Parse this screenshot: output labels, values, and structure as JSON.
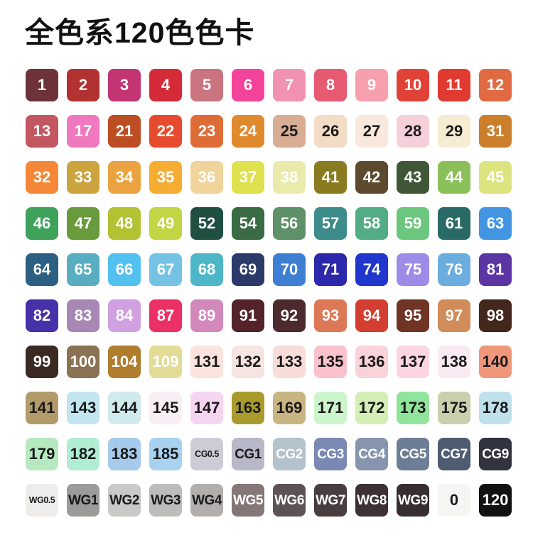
{
  "title": "全色系120色色卡",
  "grid": {
    "columns": 12,
    "rows": 10,
    "swatch_count": 120,
    "text_colors": {
      "light": "#ffffff",
      "dark": "#1a1a1a"
    },
    "swatches": [
      {
        "label": "1",
        "bg": "#6e3338",
        "fg": "#ffffff"
      },
      {
        "label": "2",
        "bg": "#b13231",
        "fg": "#ffffff"
      },
      {
        "label": "3",
        "bg": "#c23472",
        "fg": "#ffffff"
      },
      {
        "label": "4",
        "bg": "#d52a38",
        "fg": "#ffffff"
      },
      {
        "label": "5",
        "bg": "#c9747e",
        "fg": "#ffffff"
      },
      {
        "label": "6",
        "bg": "#f4439b",
        "fg": "#ffffff"
      },
      {
        "label": "7",
        "bg": "#f292b2",
        "fg": "#ffffff"
      },
      {
        "label": "8",
        "bg": "#e75b72",
        "fg": "#ffffff"
      },
      {
        "label": "9",
        "bg": "#f89fae",
        "fg": "#ffffff"
      },
      {
        "label": "10",
        "bg": "#e04238",
        "fg": "#ffffff"
      },
      {
        "label": "11",
        "bg": "#e03a31",
        "fg": "#ffffff"
      },
      {
        "label": "12",
        "bg": "#e16a42",
        "fg": "#ffffff"
      },
      {
        "label": "13",
        "bg": "#c25661",
        "fg": "#ffffff"
      },
      {
        "label": "17",
        "bg": "#f078be",
        "fg": "#ffffff"
      },
      {
        "label": "21",
        "bg": "#bd4d23",
        "fg": "#ffffff"
      },
      {
        "label": "22",
        "bg": "#e74b2f",
        "fg": "#ffffff"
      },
      {
        "label": "23",
        "bg": "#dd6c36",
        "fg": "#ffffff"
      },
      {
        "label": "24",
        "bg": "#e08a2e",
        "fg": "#ffffff"
      },
      {
        "label": "25",
        "bg": "#d9ac94",
        "fg": "#1a1a1a"
      },
      {
        "label": "26",
        "bg": "#f3dcc5",
        "fg": "#1a1a1a"
      },
      {
        "label": "27",
        "bg": "#f9e8dc",
        "fg": "#1a1a1a"
      },
      {
        "label": "28",
        "bg": "#f6d0d9",
        "fg": "#1a1a1a"
      },
      {
        "label": "29",
        "bg": "#f5ecd2",
        "fg": "#1a1a1a"
      },
      {
        "label": "31",
        "bg": "#cb7f2b",
        "fg": "#ffffff"
      },
      {
        "label": "32",
        "bg": "#f58838",
        "fg": "#ffffff"
      },
      {
        "label": "33",
        "bg": "#cba43f",
        "fg": "#ffffff"
      },
      {
        "label": "34",
        "bg": "#eba342",
        "fg": "#ffffff"
      },
      {
        "label": "35",
        "bg": "#f5ae33",
        "fg": "#ffffff"
      },
      {
        "label": "36",
        "bg": "#f0d49b",
        "fg": "#ffffff"
      },
      {
        "label": "37",
        "bg": "#dfe14e",
        "fg": "#ffffff"
      },
      {
        "label": "38",
        "bg": "#eaeaad",
        "fg": "#ffffff"
      },
      {
        "label": "41",
        "bg": "#897b20",
        "fg": "#ffffff"
      },
      {
        "label": "42",
        "bg": "#5d4a2e",
        "fg": "#ffffff"
      },
      {
        "label": "43",
        "bg": "#3f5737",
        "fg": "#ffffff"
      },
      {
        "label": "44",
        "bg": "#8bbf5a",
        "fg": "#ffffff"
      },
      {
        "label": "45",
        "bg": "#dde47f",
        "fg": "#ffffff"
      },
      {
        "label": "46",
        "bg": "#3ea25a",
        "fg": "#ffffff"
      },
      {
        "label": "47",
        "bg": "#699a3c",
        "fg": "#ffffff"
      },
      {
        "label": "48",
        "bg": "#b2c233",
        "fg": "#ffffff"
      },
      {
        "label": "49",
        "bg": "#c1d545",
        "fg": "#ffffff"
      },
      {
        "label": "52",
        "bg": "#1e4f40",
        "fg": "#ffffff"
      },
      {
        "label": "54",
        "bg": "#3a6b44",
        "fg": "#ffffff"
      },
      {
        "label": "56",
        "bg": "#5e9168",
        "fg": "#ffffff"
      },
      {
        "label": "57",
        "bg": "#3d8b8a",
        "fg": "#ffffff"
      },
      {
        "label": "58",
        "bg": "#52ac86",
        "fg": "#ffffff"
      },
      {
        "label": "59",
        "bg": "#6cc77e",
        "fg": "#ffffff"
      },
      {
        "label": "61",
        "bg": "#2a6a66",
        "fg": "#ffffff"
      },
      {
        "label": "63",
        "bg": "#4295e1",
        "fg": "#ffffff"
      },
      {
        "label": "64",
        "bg": "#2c5f82",
        "fg": "#ffffff"
      },
      {
        "label": "65",
        "bg": "#58aec0",
        "fg": "#ffffff"
      },
      {
        "label": "66",
        "bg": "#53c1ef",
        "fg": "#ffffff"
      },
      {
        "label": "67",
        "bg": "#75c3e4",
        "fg": "#ffffff"
      },
      {
        "label": "68",
        "bg": "#4db7c8",
        "fg": "#ffffff"
      },
      {
        "label": "69",
        "bg": "#2c3a6a",
        "fg": "#ffffff"
      },
      {
        "label": "70",
        "bg": "#3e7fd3",
        "fg": "#ffffff"
      },
      {
        "label": "71",
        "bg": "#2b28ab",
        "fg": "#ffffff"
      },
      {
        "label": "74",
        "bg": "#2036cc",
        "fg": "#ffffff"
      },
      {
        "label": "75",
        "bg": "#9c8ce8",
        "fg": "#ffffff"
      },
      {
        "label": "76",
        "bg": "#6caddf",
        "fg": "#ffffff"
      },
      {
        "label": "81",
        "bg": "#5c35a5",
        "fg": "#ffffff"
      },
      {
        "label": "82",
        "bg": "#4631a8",
        "fg": "#ffffff"
      },
      {
        "label": "83",
        "bg": "#a788b5",
        "fg": "#ffffff"
      },
      {
        "label": "84",
        "bg": "#d1a0e0",
        "fg": "#ffffff"
      },
      {
        "label": "87",
        "bg": "#eb3066",
        "fg": "#ffffff"
      },
      {
        "label": "89",
        "bg": "#d288bb",
        "fg": "#ffffff"
      },
      {
        "label": "91",
        "bg": "#532329",
        "fg": "#ffffff"
      },
      {
        "label": "92",
        "bg": "#4c2a2d",
        "fg": "#ffffff"
      },
      {
        "label": "93",
        "bg": "#dd7857",
        "fg": "#ffffff"
      },
      {
        "label": "94",
        "bg": "#d43e30",
        "fg": "#ffffff"
      },
      {
        "label": "95",
        "bg": "#703425",
        "fg": "#ffffff"
      },
      {
        "label": "97",
        "bg": "#d08c59",
        "fg": "#ffffff"
      },
      {
        "label": "98",
        "bg": "#43261c",
        "fg": "#ffffff"
      },
      {
        "label": "99",
        "bg": "#3a2a21",
        "fg": "#ffffff"
      },
      {
        "label": "100",
        "bg": "#8a7354",
        "fg": "#ffffff"
      },
      {
        "label": "104",
        "bg": "#b07d2d",
        "fg": "#ffffff"
      },
      {
        "label": "109",
        "bg": "#e3dc96",
        "fg": "#ffffff"
      },
      {
        "label": "131",
        "bg": "#fae3dd",
        "fg": "#1a1a1a"
      },
      {
        "label": "132",
        "bg": "#f5e4e0",
        "fg": "#1a1a1a"
      },
      {
        "label": "133",
        "bg": "#f7dcd8",
        "fg": "#1a1a1a"
      },
      {
        "label": "135",
        "bg": "#f9c2cc",
        "fg": "#1a1a1a"
      },
      {
        "label": "136",
        "bg": "#fad2d9",
        "fg": "#1a1a1a"
      },
      {
        "label": "137",
        "bg": "#fbd5e1",
        "fg": "#1a1a1a"
      },
      {
        "label": "138",
        "bg": "#faeaf1",
        "fg": "#1a1a1a"
      },
      {
        "label": "140",
        "bg": "#f0977b",
        "fg": "#1a1a1a"
      },
      {
        "label": "141",
        "bg": "#b29a6b",
        "fg": "#1a1a1a"
      },
      {
        "label": "143",
        "bg": "#c3e5ef",
        "fg": "#1a1a1a"
      },
      {
        "label": "144",
        "bg": "#d0eaee",
        "fg": "#1a1a1a"
      },
      {
        "label": "145",
        "bg": "#f9eef3",
        "fg": "#1a1a1a"
      },
      {
        "label": "147",
        "bg": "#f6d5f1",
        "fg": "#1a1a1a"
      },
      {
        "label": "163",
        "bg": "#a89b2c",
        "fg": "#1a1a1a"
      },
      {
        "label": "169",
        "bg": "#c9b483",
        "fg": "#1a1a1a"
      },
      {
        "label": "171",
        "bg": "#ccf5cc",
        "fg": "#1a1a1a"
      },
      {
        "label": "172",
        "bg": "#d4efb5",
        "fg": "#1a1a1a"
      },
      {
        "label": "173",
        "bg": "#90e49b",
        "fg": "#1a1a1a"
      },
      {
        "label": "175",
        "bg": "#cacfae",
        "fg": "#1a1a1a"
      },
      {
        "label": "178",
        "bg": "#bfe1eb",
        "fg": "#1a1a1a"
      },
      {
        "label": "179",
        "bg": "#b7e9c1",
        "fg": "#1a1a1a"
      },
      {
        "label": "182",
        "bg": "#b0edd3",
        "fg": "#1a1a1a"
      },
      {
        "label": "183",
        "bg": "#a6caec",
        "fg": "#1a1a1a"
      },
      {
        "label": "185",
        "bg": "#a8d2f0",
        "fg": "#1a1a1a"
      },
      {
        "label": "CG0.5",
        "bg": "#cdccd6",
        "fg": "#1a1a1a"
      },
      {
        "label": "CG1",
        "bg": "#b9b8c8",
        "fg": "#1a1a1a"
      },
      {
        "label": "CG2",
        "bg": "#b4c2cc",
        "fg": "#ffffff"
      },
      {
        "label": "CG3",
        "bg": "#7a89b3",
        "fg": "#ffffff"
      },
      {
        "label": "CG4",
        "bg": "#8695ad",
        "fg": "#ffffff"
      },
      {
        "label": "CG5",
        "bg": "#6d7d95",
        "fg": "#ffffff"
      },
      {
        "label": "CG7",
        "bg": "#4e5c72",
        "fg": "#ffffff"
      },
      {
        "label": "CG9",
        "bg": "#31343f",
        "fg": "#ffffff"
      },
      {
        "label": "WG0.5",
        "bg": "#eeedeb",
        "fg": "#1a1a1a"
      },
      {
        "label": "WG1",
        "bg": "#9b9b99",
        "fg": "#1a1a1a"
      },
      {
        "label": "WG2",
        "bg": "#c9c9c7",
        "fg": "#1a1a1a"
      },
      {
        "label": "WG3",
        "bg": "#bdbcba",
        "fg": "#1a1a1a"
      },
      {
        "label": "WG4",
        "bg": "#b2aeab",
        "fg": "#1a1a1a"
      },
      {
        "label": "WG5",
        "bg": "#857678",
        "fg": "#ffffff"
      },
      {
        "label": "WG6",
        "bg": "#5d5355",
        "fg": "#ffffff"
      },
      {
        "label": "WG7",
        "bg": "#483d3f",
        "fg": "#ffffff"
      },
      {
        "label": "WG8",
        "bg": "#3d3134",
        "fg": "#ffffff"
      },
      {
        "label": "WG9",
        "bg": "#372e31",
        "fg": "#ffffff"
      },
      {
        "label": "0",
        "bg": "#f5f5f3",
        "fg": "#1a1a1a"
      },
      {
        "label": "120",
        "bg": "#111111",
        "fg": "#ffffff"
      }
    ]
  }
}
